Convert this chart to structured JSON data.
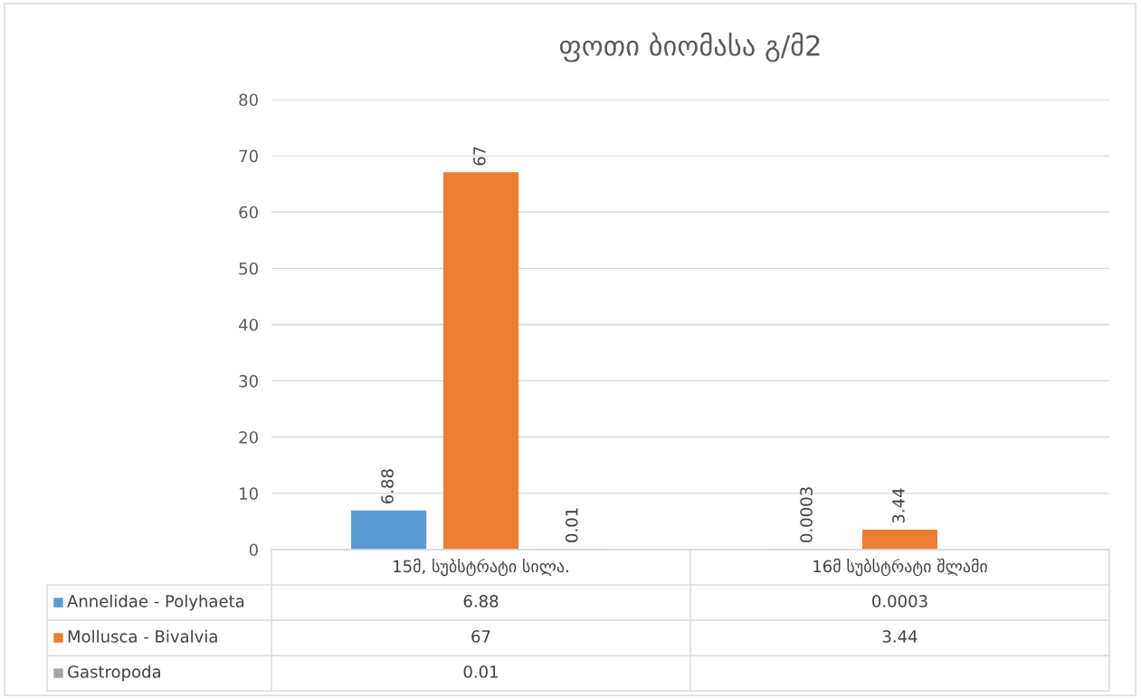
{
  "chart_data": {
    "type": "bar",
    "title": "ფოთი ბიომასა გ/მ2",
    "categories": [
      "15მ, სუბსტრატი სილა.",
      "16მ სუბსტრატი შლამი"
    ],
    "series": [
      {
        "name": "Annelidae - Polyhaeta",
        "color": "#5b9bd5",
        "values": [
          6.88,
          0.0003
        ],
        "value_labels": [
          "6.88",
          "0.0003"
        ]
      },
      {
        "name": "Mollusca - Bivalvia",
        "color": "#ed7d31",
        "values": [
          67,
          3.44
        ],
        "value_labels": [
          "67",
          "3.44"
        ]
      },
      {
        "name": "Gastropoda",
        "color": "#a5a5a5",
        "values": [
          0.01,
          null
        ],
        "value_labels": [
          "0.01",
          null
        ]
      }
    ],
    "ylim": [
      0,
      80
    ],
    "yticks": [
      0,
      10,
      20,
      30,
      40,
      50,
      60,
      70,
      80
    ],
    "cell_labels": [
      [
        "6.88",
        "0.0003"
      ],
      [
        "67",
        "3.44"
      ],
      [
        "0.01",
        null
      ]
    ],
    "grid": "y",
    "legend": "bottom"
  }
}
